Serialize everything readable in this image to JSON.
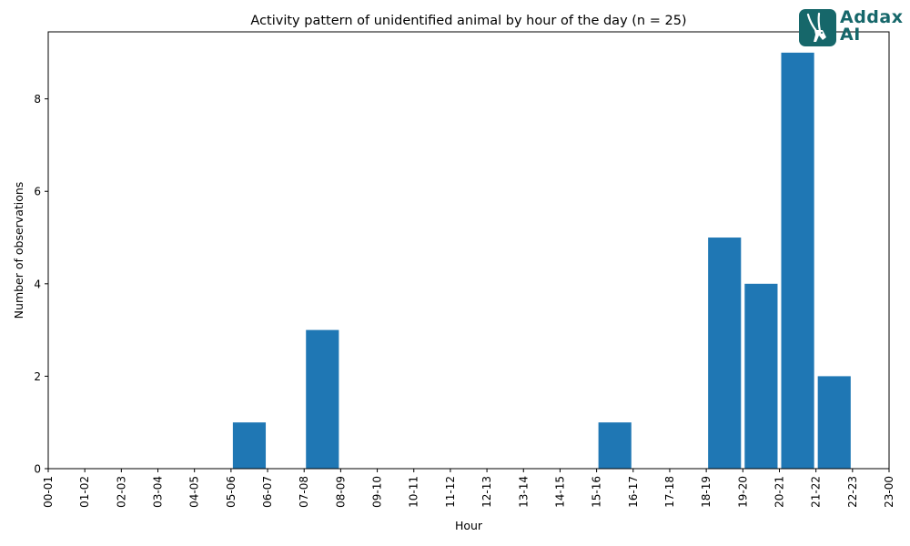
{
  "logo": {
    "line1": "Addax",
    "line2": "AI",
    "color": "#16676a"
  },
  "chart_data": {
    "type": "bar",
    "title": "Activity pattern of unidentified animal by hour of the day (n = 25)",
    "xlabel": "Hour",
    "ylabel": "Number of observations",
    "categories": [
      "00-01",
      "01-02",
      "02-03",
      "03-04",
      "04-05",
      "05-06",
      "06-07",
      "07-08",
      "08-09",
      "09-10",
      "10-11",
      "11-12",
      "12-13",
      "13-14",
      "14-15",
      "15-16",
      "16-17",
      "17-18",
      "18-19",
      "19-20",
      "20-21",
      "21-22",
      "22-23",
      "23-00"
    ],
    "values": [
      0,
      0,
      0,
      0,
      0,
      1,
      0,
      3,
      0,
      0,
      0,
      0,
      0,
      0,
      0,
      1,
      0,
      0,
      5,
      4,
      9,
      2,
      0,
      0
    ],
    "ylim": [
      0,
      9.45
    ],
    "yticks": [
      0,
      2,
      4,
      6,
      8
    ],
    "grid": false,
    "bar_color": "#1f77b4"
  }
}
